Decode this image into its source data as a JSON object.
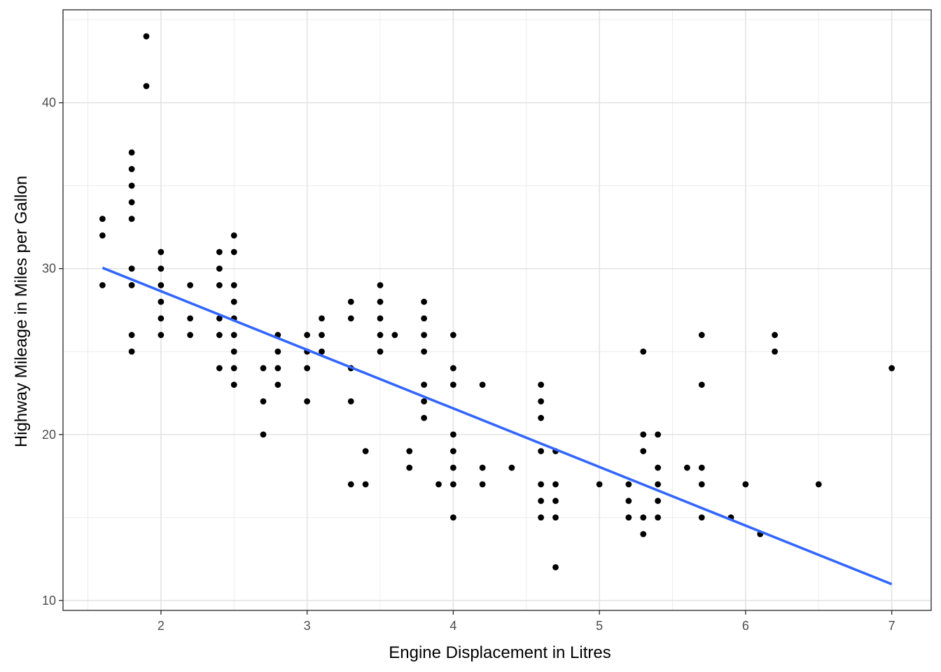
{
  "chart_data": {
    "type": "scatter",
    "title": "",
    "xlabel": "Engine Displacement in Litres",
    "ylabel": "Highway Mileage in Miles per Gallon",
    "xlim": [
      1.33,
      7.27
    ],
    "ylim": [
      9.4,
      45.6
    ],
    "x_ticks": [
      2,
      3,
      4,
      5,
      6,
      7
    ],
    "y_ticks": [
      10,
      20,
      30,
      40
    ],
    "x_tick_labels": [
      "2",
      "3",
      "4",
      "5",
      "6",
      "7"
    ],
    "y_tick_labels": [
      "10",
      "20",
      "30",
      "40"
    ],
    "grid": true,
    "legend": "none",
    "point_color": "#000000",
    "fit_line_color": "#3366FF",
    "fit_line": {
      "type": "linear",
      "x": [
        1.6,
        7.0
      ],
      "y": [
        30.05,
        10.98
      ]
    },
    "points": [
      [
        1.6,
        33
      ],
      [
        1.6,
        32
      ],
      [
        1.6,
        29
      ],
      [
        1.8,
        37
      ],
      [
        1.8,
        36
      ],
      [
        1.8,
        35
      ],
      [
        1.8,
        34
      ],
      [
        1.8,
        33
      ],
      [
        1.8,
        30
      ],
      [
        1.8,
        29
      ],
      [
        1.8,
        26
      ],
      [
        1.8,
        25
      ],
      [
        1.9,
        44
      ],
      [
        1.9,
        41
      ],
      [
        2.0,
        31
      ],
      [
        2.0,
        30
      ],
      [
        2.0,
        29
      ],
      [
        2.0,
        28
      ],
      [
        2.0,
        27
      ],
      [
        2.0,
        26
      ],
      [
        2.2,
        29
      ],
      [
        2.2,
        27
      ],
      [
        2.2,
        26
      ],
      [
        2.4,
        31
      ],
      [
        2.4,
        30
      ],
      [
        2.4,
        29
      ],
      [
        2.4,
        27
      ],
      [
        2.4,
        26
      ],
      [
        2.4,
        24
      ],
      [
        2.5,
        32
      ],
      [
        2.5,
        31
      ],
      [
        2.5,
        29
      ],
      [
        2.5,
        28
      ],
      [
        2.5,
        27
      ],
      [
        2.5,
        26
      ],
      [
        2.5,
        25
      ],
      [
        2.5,
        24
      ],
      [
        2.5,
        23
      ],
      [
        2.7,
        24
      ],
      [
        2.7,
        22
      ],
      [
        2.7,
        20
      ],
      [
        2.8,
        26
      ],
      [
        2.8,
        25
      ],
      [
        2.8,
        24
      ],
      [
        2.8,
        23
      ],
      [
        3.0,
        26
      ],
      [
        3.0,
        25
      ],
      [
        3.0,
        24
      ],
      [
        3.0,
        22
      ],
      [
        3.1,
        27
      ],
      [
        3.1,
        26
      ],
      [
        3.1,
        25
      ],
      [
        3.3,
        28
      ],
      [
        3.3,
        27
      ],
      [
        3.3,
        24
      ],
      [
        3.3,
        22
      ],
      [
        3.3,
        17
      ],
      [
        3.4,
        19
      ],
      [
        3.4,
        17
      ],
      [
        3.5,
        29
      ],
      [
        3.5,
        28
      ],
      [
        3.5,
        27
      ],
      [
        3.5,
        26
      ],
      [
        3.5,
        25
      ],
      [
        3.6,
        26
      ],
      [
        3.7,
        19
      ],
      [
        3.7,
        18
      ],
      [
        3.8,
        28
      ],
      [
        3.8,
        27
      ],
      [
        3.8,
        26
      ],
      [
        3.8,
        25
      ],
      [
        3.8,
        23
      ],
      [
        3.8,
        22
      ],
      [
        3.8,
        21
      ],
      [
        3.9,
        17
      ],
      [
        4.0,
        26
      ],
      [
        4.0,
        24
      ],
      [
        4.0,
        23
      ],
      [
        4.0,
        20
      ],
      [
        4.0,
        19
      ],
      [
        4.0,
        18
      ],
      [
        4.0,
        17
      ],
      [
        4.0,
        15
      ],
      [
        4.2,
        23
      ],
      [
        4.2,
        18
      ],
      [
        4.2,
        17
      ],
      [
        4.4,
        18
      ],
      [
        4.6,
        23
      ],
      [
        4.6,
        22
      ],
      [
        4.6,
        21
      ],
      [
        4.6,
        19
      ],
      [
        4.6,
        17
      ],
      [
        4.6,
        16
      ],
      [
        4.6,
        15
      ],
      [
        4.7,
        19
      ],
      [
        4.7,
        17
      ],
      [
        4.7,
        16
      ],
      [
        4.7,
        15
      ],
      [
        4.7,
        12
      ],
      [
        5.0,
        17
      ],
      [
        5.2,
        17
      ],
      [
        5.2,
        16
      ],
      [
        5.2,
        15
      ],
      [
        5.3,
        25
      ],
      [
        5.3,
        20
      ],
      [
        5.3,
        19
      ],
      [
        5.3,
        15
      ],
      [
        5.3,
        14
      ],
      [
        5.4,
        20
      ],
      [
        5.4,
        18
      ],
      [
        5.4,
        17
      ],
      [
        5.4,
        16
      ],
      [
        5.4,
        15
      ],
      [
        5.6,
        18
      ],
      [
        5.7,
        26
      ],
      [
        5.7,
        23
      ],
      [
        5.7,
        18
      ],
      [
        5.7,
        17
      ],
      [
        5.7,
        15
      ],
      [
        5.9,
        15
      ],
      [
        6.0,
        17
      ],
      [
        6.1,
        14
      ],
      [
        6.2,
        26
      ],
      [
        6.2,
        25
      ],
      [
        6.5,
        17
      ],
      [
        7.0,
        24
      ]
    ]
  }
}
